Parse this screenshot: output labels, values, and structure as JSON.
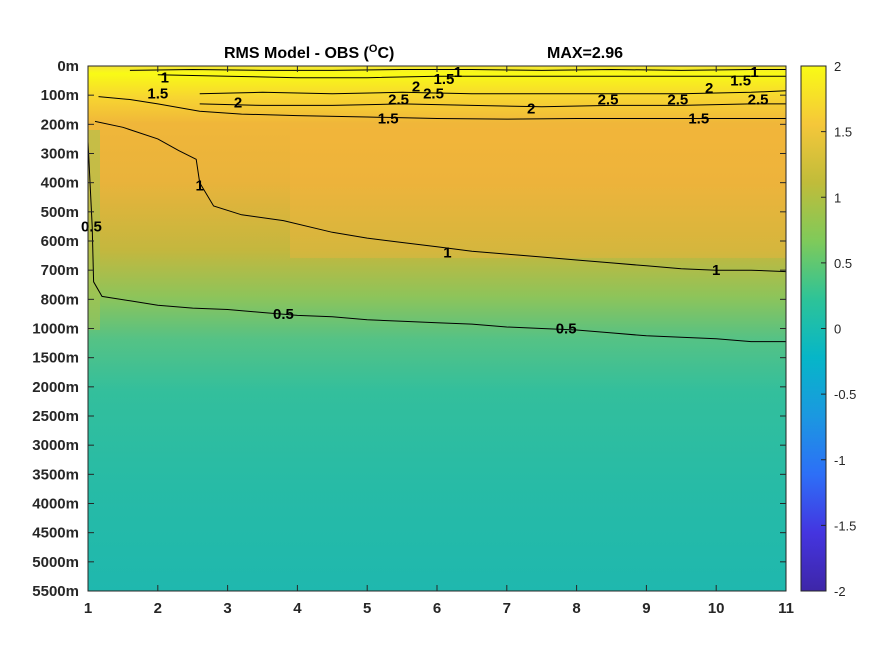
{
  "chart_data": {
    "type": "heatmap",
    "title": "RMS Model - OBS (",
    "title_unit_sup": "O",
    "title_unit_tail": "C)",
    "max_label": "MAX=2.96",
    "x_ticks": [
      "1",
      "2",
      "3",
      "4",
      "5",
      "6",
      "7",
      "8",
      "9",
      "10",
      "11"
    ],
    "xlim": [
      1,
      11
    ],
    "y_ticks": [
      "0m",
      "100m",
      "200m",
      "300m",
      "400m",
      "500m",
      "600m",
      "700m",
      "800m",
      "1000m",
      "1500m",
      "2000m",
      "2500m",
      "3000m",
      "3500m",
      "4000m",
      "4500m",
      "5000m",
      "5500m"
    ],
    "colorbar": {
      "range": [
        -2,
        2
      ],
      "ticks": [
        "2",
        "1.5",
        "1",
        "0.5",
        "0",
        "-0.5",
        "-1",
        "-1.5",
        "-2"
      ],
      "colors": [
        "#3e26a8",
        "#4435e0",
        "#2d6ff7",
        "#1b98e0",
        "#06b6c8",
        "#2dc398",
        "#7fca5a",
        "#c0bc3a",
        "#f5c73a",
        "#f9fb15"
      ]
    },
    "contour_levels": [
      0.5,
      1,
      1.5,
      2,
      2.5
    ],
    "contour_labels": [
      {
        "text": "1",
        "x": 2.1,
        "depth_index": 0.4
      },
      {
        "text": "1.5",
        "x": 2.0,
        "depth_index": 0.95
      },
      {
        "text": "2",
        "x": 3.15,
        "depth_index": 1.25
      },
      {
        "text": "2",
        "x": 5.7,
        "depth_index": 0.7
      },
      {
        "text": "1.5",
        "x": 6.1,
        "depth_index": 0.45
      },
      {
        "text": "1",
        "x": 6.3,
        "depth_index": 0.2
      },
      {
        "text": "2.5",
        "x": 5.45,
        "depth_index": 1.15
      },
      {
        "text": "2.5",
        "x": 5.95,
        "depth_index": 0.95
      },
      {
        "text": "1.5",
        "x": 5.3,
        "depth_index": 1.8
      },
      {
        "text": "2",
        "x": 7.35,
        "depth_index": 1.45
      },
      {
        "text": "2.5",
        "x": 8.45,
        "depth_index": 1.15
      },
      {
        "text": "2.5",
        "x": 9.45,
        "depth_index": 1.15
      },
      {
        "text": "2",
        "x": 9.9,
        "depth_index": 0.75
      },
      {
        "text": "1.5",
        "x": 10.35,
        "depth_index": 0.5
      },
      {
        "text": "1",
        "x": 10.55,
        "depth_index": 0.2
      },
      {
        "text": "2.5",
        "x": 10.6,
        "depth_index": 1.15
      },
      {
        "text": "1.5",
        "x": 9.75,
        "depth_index": 1.8
      },
      {
        "text": "1",
        "x": 2.6,
        "depth_index": 4.1
      },
      {
        "text": "0.5",
        "x": 1.05,
        "depth_index": 5.5
      },
      {
        "text": "1",
        "x": 6.15,
        "depth_index": 6.4
      },
      {
        "text": "1",
        "x": 10.0,
        "depth_index": 7.0
      },
      {
        "text": "0.5",
        "x": 3.8,
        "depth_index": 8.5
      },
      {
        "text": "0.5",
        "x": 7.85,
        "depth_index": 9.0
      }
    ],
    "grid": false,
    "colorbar_position": "right"
  }
}
